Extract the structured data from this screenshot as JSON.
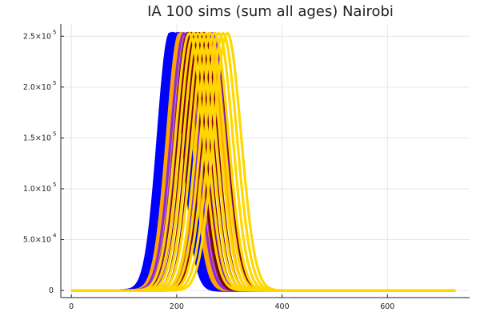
{
  "chart_data": {
    "type": "line",
    "title": "IA 100 sims (sum all ages) Nairobi",
    "xlabel": "",
    "ylabel": "",
    "xlim": [
      -20,
      756
    ],
    "ylim": [
      -7000,
      262000
    ],
    "x_ticks": [
      {
        "value": 0,
        "label": "0"
      },
      {
        "value": 200,
        "label": "200"
      },
      {
        "value": 400,
        "label": "400"
      },
      {
        "value": 600,
        "label": "600"
      }
    ],
    "y_ticks": [
      {
        "value": 0,
        "mantissa": "0",
        "exp": ""
      },
      {
        "value": 50000,
        "mantissa": "5.0×10",
        "exp": "4"
      },
      {
        "value": 100000,
        "mantissa": "1.0×10",
        "exp": "5"
      },
      {
        "value": 150000,
        "mantissa": "1.5×10",
        "exp": "5"
      },
      {
        "value": 200000,
        "mantissa": "2.0×10",
        "exp": "5"
      },
      {
        "value": 250000,
        "mantissa": "2.5×10",
        "exp": "5"
      }
    ],
    "grid": true,
    "legend": "none",
    "x_range_days": [
      0,
      730
    ],
    "peak_value": 253000,
    "series_groups": [
      {
        "color": "#0000ff",
        "peak_days": [
          188,
          192,
          196,
          200,
          204,
          208
        ],
        "width_days": 33
      },
      {
        "color": "#ffa500",
        "peak_days": [
          206,
          210,
          214,
          218,
          262
        ],
        "width_days": 34
      },
      {
        "color": "#8a2be2",
        "peak_days": [
          214,
          220,
          226,
          230,
          268
        ],
        "width_days": 35
      },
      {
        "color": "#800000",
        "peak_days": [
          222,
          228,
          236,
          244,
          252,
          272
        ],
        "width_days": 35
      },
      {
        "color": "#ffd700",
        "peak_days": [
          224,
          232,
          240,
          248,
          256,
          264,
          272,
          280,
          288,
          296
        ],
        "width_days": 37
      }
    ]
  }
}
